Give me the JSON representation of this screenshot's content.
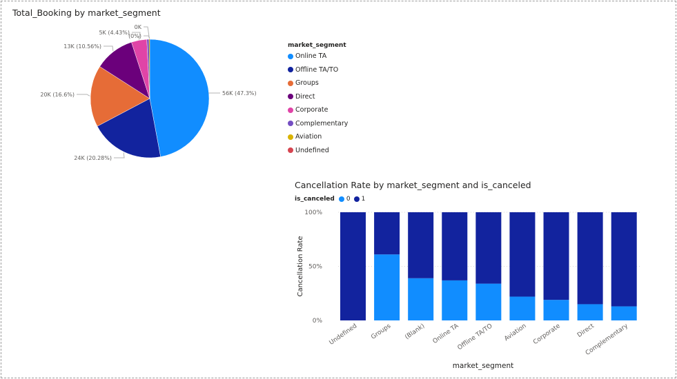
{
  "pie": {
    "title": "Total_Booking by market_segment",
    "legend_title": "market_segment"
  },
  "bar": {
    "title": "Cancellation Rate by market_segment and is_canceled",
    "legend_title": "is_canceled",
    "legend": [
      {
        "label": "0",
        "color": "#118DFF"
      },
      {
        "label": "1",
        "color": "#12239E"
      }
    ]
  },
  "chart_data": [
    {
      "type": "pie",
      "title": "Total_Booking by market_segment",
      "legend_title": "market_segment",
      "legend_position": "right",
      "slices": [
        {
          "name": "Online TA",
          "value": 56000,
          "label": "56K (47.3%)",
          "color": "#118DFF"
        },
        {
          "name": "Offline TA/TO",
          "value": 24000,
          "label": "24K (20.28%)",
          "color": "#12239E"
        },
        {
          "name": "Groups",
          "value": 20000,
          "label": "20K (16.6%)",
          "color": "#E66C37"
        },
        {
          "name": "Direct",
          "value": 13000,
          "label": "13K (10.56%)",
          "color": "#6B007B"
        },
        {
          "name": "Corporate",
          "value": 5000,
          "label": "5K (4.43%)",
          "color": "#E044A7"
        },
        {
          "name": "Complementary",
          "value": 700,
          "label": "",
          "color": "#744EC2"
        },
        {
          "name": "Aviation",
          "value": 237,
          "label": "0K",
          "color": "#D9B300"
        },
        {
          "name": "Undefined",
          "value": 2,
          "label": "(0%)",
          "color": "#D64550"
        }
      ],
      "percentages": [
        47.3,
        20.28,
        16.6,
        10.56,
        4.43,
        0.62,
        0.2,
        0.0
      ]
    },
    {
      "type": "bar",
      "stacked": "100%",
      "title": "Cancellation Rate by market_segment and is_canceled",
      "xlabel": "market_segment",
      "ylabel": "Cancellation Rate",
      "ylim": [
        0,
        100
      ],
      "yticks": [
        "0%",
        "50%",
        "100%"
      ],
      "grid": true,
      "legend_title": "is_canceled",
      "legend_position": "top-left",
      "categories": [
        "Undefined",
        "Groups",
        "(Blank)",
        "Online TA",
        "Offline TA/TO",
        "Aviation",
        "Corporate",
        "Direct",
        "Complementary"
      ],
      "series": [
        {
          "name": "0",
          "color": "#118DFF",
          "values": [
            0,
            61,
            39,
            37,
            34,
            22,
            19,
            15,
            13
          ]
        },
        {
          "name": "1",
          "color": "#12239E",
          "values": [
            100,
            39,
            61,
            63,
            66,
            78,
            81,
            85,
            87
          ]
        }
      ]
    }
  ]
}
